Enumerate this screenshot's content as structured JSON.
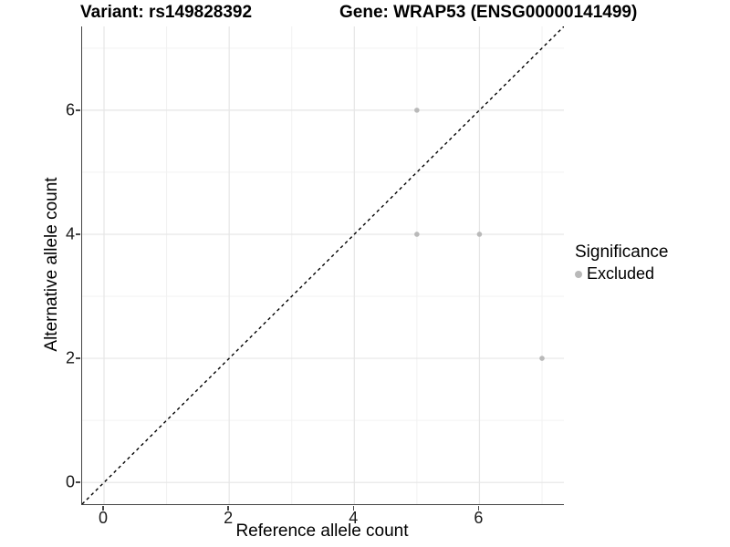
{
  "chart_data": {
    "type": "scatter",
    "titles": {
      "left": "Variant: rs149828392",
      "right": "Gene: WRAP53 (ENSG00000141499)"
    },
    "xlabel": "Reference allele count",
    "ylabel": "Alternative allele count",
    "xlim": [
      -0.35,
      7.35
    ],
    "ylim": [
      -0.35,
      7.35
    ],
    "x_major_ticks": [
      0,
      2,
      4,
      6
    ],
    "y_major_ticks": [
      0,
      2,
      4,
      6
    ],
    "x_minor_ticks": [
      1,
      3,
      5,
      7
    ],
    "y_minor_ticks": [
      1,
      3,
      5,
      7
    ],
    "grid": true,
    "identity_line": {
      "style": "dashed",
      "color": "#000000",
      "from": [
        -0.35,
        -0.35
      ],
      "to": [
        7.35,
        7.35
      ]
    },
    "series": [
      {
        "name": "Excluded",
        "color": "#b9b9b9",
        "points": [
          {
            "x": 5,
            "y": 6
          },
          {
            "x": 5,
            "y": 4
          },
          {
            "x": 6,
            "y": 4
          },
          {
            "x": 7,
            "y": 2
          }
        ]
      }
    ],
    "legend": {
      "title": "Significance",
      "position": "right",
      "items": [
        {
          "label": "Excluded",
          "color": "#b9b9b9"
        }
      ]
    },
    "colors": {
      "grid_major": "#e6e6e6",
      "grid_minor": "#f2f2f2",
      "axis_line": "#454545",
      "text": "#000000",
      "background": "#ffffff"
    }
  }
}
